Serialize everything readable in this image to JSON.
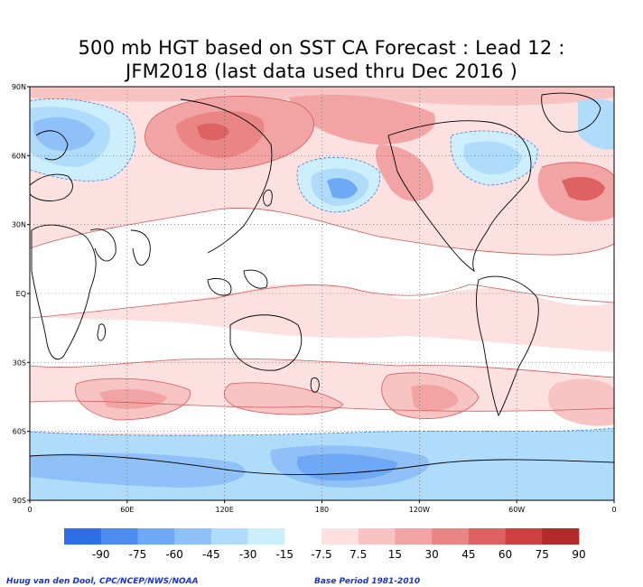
{
  "title": {
    "line1": "500 mb HGT based on SST CA Forecast : Lead 12 :",
    "line2": "JFM2018 (last data used thru Dec 2016 )"
  },
  "axes": {
    "lat_labels": [
      "90N",
      "60N",
      "30N",
      "EQ",
      "30S",
      "60S",
      "90S"
    ],
    "lon_labels": [
      "0",
      "60E",
      "120E",
      "180",
      "120W",
      "60W",
      "0"
    ]
  },
  "legend": {
    "labels": [
      "-90",
      "-75",
      "-60",
      "-45",
      "-30",
      "-15",
      "-7.5",
      "7.5",
      "15",
      "30",
      "45",
      "60",
      "75",
      "90"
    ],
    "colors": [
      "#2e6ee6",
      "#4e8df0",
      "#6fa8f5",
      "#8fc0f8",
      "#b0dcfb",
      "#cdeefd",
      "#ffffff",
      "#fde0e0",
      "#f8c3c3",
      "#f2a4a4",
      "#e98585",
      "#df6262",
      "#cf4040",
      "#b22a2a"
    ]
  },
  "footer": {
    "credit": "Huug van den Dool, CPC/NCEP/NWS/NOAA",
    "base_period": "Base Period 1981-2010"
  },
  "colors": {
    "neg_strong": "#2e6ee6",
    "neg_mid": "#6fa8f5",
    "neg_light": "#b0dcfb",
    "neg_faint": "#cdeefd",
    "pos_faint": "#fde0e0",
    "pos_light": "#f8c3c3",
    "pos_mid": "#f2a4a4",
    "pos_strong": "#df6262",
    "pos_max": "#cf4040"
  }
}
